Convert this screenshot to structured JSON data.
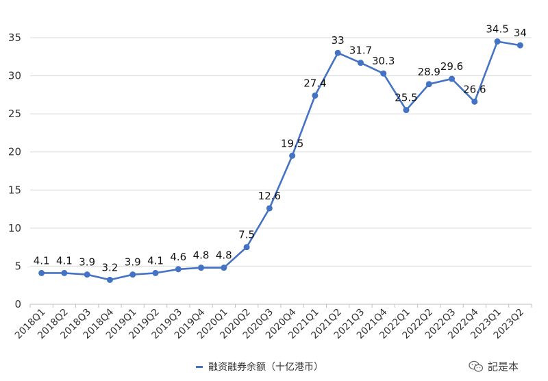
{
  "chart_data": {
    "type": "line",
    "categories": [
      "2018Q1",
      "2018Q2",
      "2018Q3",
      "2018Q4",
      "2019Q1",
      "2019Q2",
      "2019Q3",
      "2019Q4",
      "2020Q1",
      "2020Q2",
      "2020Q3",
      "2020Q4",
      "2021Q1",
      "2021Q2",
      "2021Q3",
      "2021Q4",
      "2022Q1",
      "2022Q2",
      "2022Q3",
      "2022Q4",
      "2023Q1",
      "2023Q2"
    ],
    "series": [
      {
        "name": "融资融券余额（十亿港币）",
        "values": [
          4.1,
          4.1,
          3.9,
          3.2,
          3.9,
          4.1,
          4.6,
          4.8,
          4.8,
          7.5,
          12.6,
          19.5,
          27.4,
          33,
          31.7,
          30.3,
          25.5,
          28.9,
          29.6,
          26.6,
          34.5,
          34
        ],
        "color": "#4472C4"
      }
    ],
    "data_labels": [
      "4.1",
      "4.1",
      "3.9",
      "3.2",
      "3.9",
      "4.1",
      "4.6",
      "4.8",
      "4.8",
      "7.5",
      "12.6",
      "19.5",
      "27.4",
      "33",
      "31.7",
      "30.3",
      "25.5",
      "28.9",
      "29.6",
      "26.6",
      "34.5",
      "34"
    ],
    "ylim": [
      0,
      35
    ],
    "yticks": [
      "0",
      "5",
      "10",
      "15",
      "20",
      "25",
      "30",
      "35"
    ],
    "grid": "horizontal",
    "legend_position": "bottom"
  },
  "legend": {
    "label": "融资融券余额（十亿港币）"
  },
  "watermark": {
    "text": "記是本",
    "icon": "wechat-icon"
  }
}
